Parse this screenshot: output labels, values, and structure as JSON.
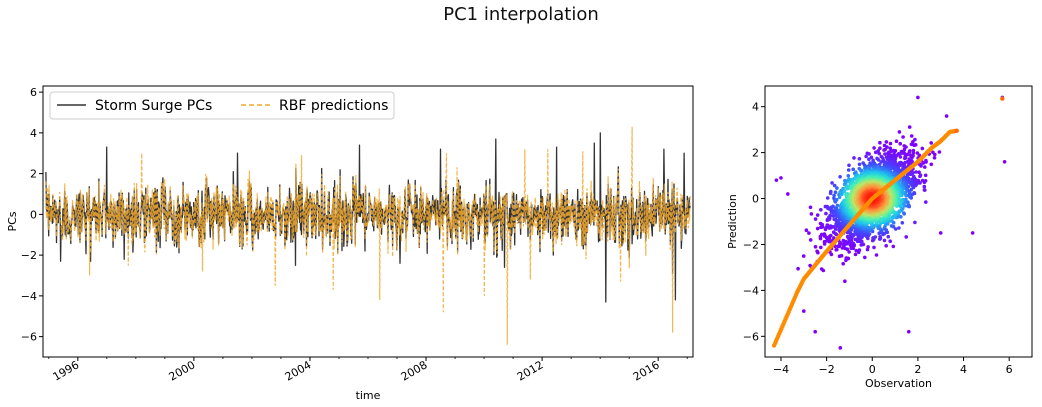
{
  "figure": {
    "title": "PC1 interpolation"
  },
  "chart_data": [
    {
      "type": "line",
      "xlabel": "time",
      "ylabel": "PCs",
      "xlim": [
        1994.8,
        2017.2
      ],
      "ylim": [
        -7.0,
        6.3
      ],
      "xticks": [
        1996,
        2000,
        2004,
        2008,
        2012,
        2016
      ],
      "xtick_labels": [
        "1996",
        "2000",
        "2004",
        "2008",
        "2012",
        "2016"
      ],
      "yticks": [
        -6,
        -4,
        -2,
        0,
        2,
        4,
        6
      ],
      "ytick_labels": [
        "−6",
        "−4",
        "−2",
        "0",
        "2",
        "4",
        "6"
      ],
      "legend_position": "top-left",
      "series": [
        {
          "name": "Storm Surge PCs",
          "color": "#333333",
          "style": "solid",
          "peaks": [
            [
              1997.0,
              3.3
            ],
            [
              2001.5,
              3.0
            ],
            [
              2005.7,
              3.4
            ],
            [
              2008.5,
              3.2
            ],
            [
              2010.4,
              3.7
            ],
            [
              2012.5,
              3.3
            ],
            [
              2013.8,
              3.5
            ],
            [
              2014.0,
              4.0
            ],
            [
              2014.2,
              5.7
            ],
            [
              2016.2,
              3.2
            ],
            [
              2016.9,
              3.0
            ]
          ],
          "troughs": [
            [
              1995.4,
              -2.3
            ],
            [
              1997.6,
              -2.2
            ],
            [
              2003.5,
              -2.5
            ],
            [
              2007.1,
              -2.4
            ],
            [
              2010.7,
              -2.6
            ],
            [
              2014.2,
              -4.3
            ],
            [
              2016.5,
              -2.9
            ],
            [
              2016.6,
              -4.2
            ]
          ]
        },
        {
          "name": "RBF predictions",
          "color": "#f2a930",
          "style": "dashed",
          "peaks": [
            [
              1998.2,
              3.0
            ],
            [
              2003.7,
              2.9
            ],
            [
              2008.7,
              3.0
            ],
            [
              2011.4,
              3.2
            ],
            [
              2012.2,
              3.2
            ],
            [
              2013.4,
              3.1
            ],
            [
              2015.1,
              4.3
            ]
          ],
          "troughs": [
            [
              1996.4,
              -3.0
            ],
            [
              2000.3,
              -2.8
            ],
            [
              2002.8,
              -3.5
            ],
            [
              2004.8,
              -3.7
            ],
            [
              2006.4,
              -4.2
            ],
            [
              2008.6,
              -4.8
            ],
            [
              2010.0,
              -4.0
            ],
            [
              2010.8,
              -6.4
            ],
            [
              2011.6,
              -3.2
            ],
            [
              2014.7,
              -3.3
            ],
            [
              2016.5,
              -5.8
            ]
          ]
        }
      ]
    },
    {
      "type": "scatter",
      "xlabel": "Observation",
      "ylabel": "Prediction",
      "xlim": [
        -4.7,
        7.0
      ],
      "ylim": [
        -6.9,
        4.9
      ],
      "xticks": [
        -4,
        -2,
        0,
        2,
        4,
        6
      ],
      "xtick_labels": [
        "−4",
        "−2",
        "0",
        "2",
        "4",
        "6"
      ],
      "yticks": [
        -6,
        -4,
        -2,
        0,
        2,
        4
      ],
      "ytick_labels": [
        "−6",
        "−4",
        "−2",
        "0",
        "2",
        "4"
      ],
      "colormap": "rainbow (purple low density → red high density)",
      "fit_color": "#ff8c00",
      "outliers": [
        [
          -4.3,
          -6.4
        ],
        [
          -4.2,
          0.8
        ],
        [
          -4.0,
          0.9
        ],
        [
          -3.7,
          0.2
        ],
        [
          -2.5,
          -5.8
        ],
        [
          -1.4,
          -6.5
        ],
        [
          -1.2,
          -3.6
        ],
        [
          1.6,
          -5.8
        ],
        [
          2.0,
          4.4
        ],
        [
          4.4,
          -1.5
        ],
        [
          5.7,
          4.4
        ],
        [
          5.8,
          1.6
        ],
        [
          3.0,
          -1.5
        ],
        [
          -3.0,
          -4.9
        ]
      ],
      "fit_points": [
        [
          -4.3,
          -6.4
        ],
        [
          -3.3,
          -4.1
        ],
        [
          -3.0,
          -3.5
        ],
        [
          -2.0,
          -2.3
        ],
        [
          -1.0,
          -1.15
        ],
        [
          0.0,
          0.0
        ],
        [
          1.0,
          0.8
        ],
        [
          2.0,
          1.6
        ],
        [
          2.6,
          2.2
        ],
        [
          3.0,
          2.5
        ],
        [
          3.4,
          2.9
        ],
        [
          3.7,
          2.95
        ],
        [
          5.7,
          4.35
        ]
      ]
    }
  ]
}
